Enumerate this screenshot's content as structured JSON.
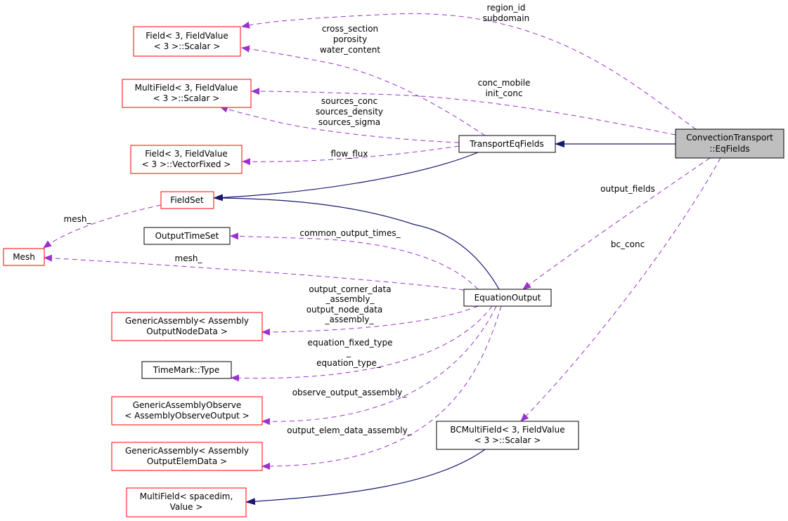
{
  "colors": {
    "usage_edge": "#9a32cd",
    "inheritance_edge": "#191970",
    "incomplete_node_border": "#ff0000",
    "node_border": "#000000",
    "focus_node_fill": "#bfbfbf"
  },
  "nodes": {
    "field_scalar": [
      "Field< 3, FieldValue",
      "< 3 >::Scalar >"
    ],
    "multifield_scalar": [
      "MultiField< 3, FieldValue",
      "< 3 >::Scalar >"
    ],
    "field_vector": [
      "Field< 3, FieldValue",
      "< 3 >::VectorFixed >"
    ],
    "fieldset": [
      "FieldSet"
    ],
    "mesh": [
      "Mesh"
    ],
    "output_time_set": [
      "OutputTimeSet"
    ],
    "ga_node": [
      "GenericAssembly< Assembly",
      "OutputNodeData >"
    ],
    "timemark": [
      "TimeMark::Type"
    ],
    "ga_observe": [
      "GenericAssemblyObserve",
      "< AssemblyObserveOutput >"
    ],
    "ga_elem": [
      "GenericAssembly< Assembly",
      "OutputElemData >"
    ],
    "multifield_spacedim": [
      "MultiField< spacedim,",
      "Value >"
    ],
    "transport_eq_fields": [
      "TransportEqFields"
    ],
    "equation_output": [
      "EquationOutput"
    ],
    "bc_multifield": [
      "BCMultiField< 3, FieldValue",
      "< 3 >::Scalar >"
    ],
    "eq_fields": [
      "ConvectionTransport",
      "::EqFields"
    ]
  },
  "edge_labels": {
    "region": [
      "region_id",
      "subdomain"
    ],
    "cross": [
      "cross_section",
      "porosity",
      "water_content"
    ],
    "conc": [
      "conc_mobile",
      "init_conc"
    ],
    "sources": [
      "sources_conc",
      "sources_density",
      "sources_sigma"
    ],
    "flow_flux": [
      "flow_flux"
    ],
    "mesh_fieldset": [
      "mesh_"
    ],
    "common_output": [
      "common_output_times_"
    ],
    "mesh_eo": [
      "mesh_"
    ],
    "corner_node": [
      "output_corner_data",
      "_assembly_",
      "output_node_data",
      "_assembly_"
    ],
    "eq_type": [
      "equation_fixed_type",
      "_",
      "equation_type_"
    ],
    "observe": [
      "observe_output_assembly_"
    ],
    "elem": [
      "output_elem_data_assembly_"
    ],
    "output_fields": [
      "output_fields"
    ],
    "bc_conc": [
      "bc_conc"
    ]
  }
}
